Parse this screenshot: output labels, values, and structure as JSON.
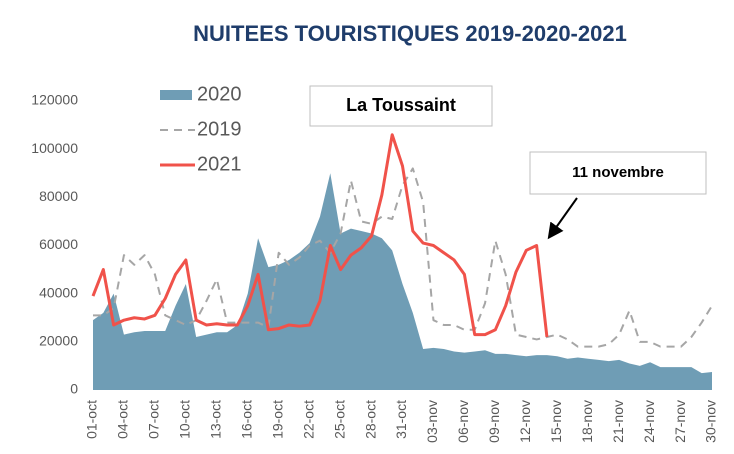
{
  "chart_data": {
    "type": "line",
    "title": "NUITEES TOURISTIQUES 2019-2020-2021",
    "annotations": [
      "La Toussaint",
      "11 novembre"
    ],
    "categories": [
      "01-oct",
      null,
      null,
      "04-oct",
      null,
      null,
      "07-oct",
      null,
      null,
      "10-oct",
      null,
      null,
      "13-oct",
      null,
      null,
      "16-oct",
      null,
      null,
      "19-oct",
      null,
      null,
      "22-oct",
      null,
      null,
      "25-oct",
      null,
      null,
      "28-oct",
      null,
      null,
      "31-oct",
      null,
      null,
      "03-nov",
      null,
      null,
      "06-nov",
      null,
      null,
      "09-nov",
      null,
      null,
      "12-nov",
      null,
      null,
      "15-nov",
      null,
      null,
      "18-nov",
      null,
      null,
      "21-nov",
      null,
      null,
      "24-nov",
      null,
      null,
      "27-nov",
      null,
      null,
      "30-nov"
    ],
    "series": [
      {
        "name": "2020",
        "color": "#6f9db5",
        "style": "area",
        "values": [
          29000,
          32000,
          40000,
          23000,
          24000,
          24500,
          24500,
          24500,
          35000,
          44000,
          22000,
          23000,
          24000,
          24000,
          27000,
          40000,
          63000,
          51000,
          52000,
          54000,
          57000,
          61000,
          72000,
          90000,
          65000,
          67000,
          66000,
          65000,
          63000,
          58000,
          44000,
          32000,
          17000,
          17500,
          17000,
          16000,
          15500,
          16000,
          16500,
          15000,
          15000,
          14500,
          14000,
          14500,
          14500,
          14000,
          13000,
          13500,
          13000,
          12500,
          12000,
          12500,
          11000,
          10000,
          11500,
          9500,
          9500,
          9500,
          9500,
          7000,
          7500
        ]
      },
      {
        "name": "2019",
        "color": "#a6a6a6",
        "style": "dashed",
        "values": [
          31000,
          31000,
          34000,
          56000,
          52000,
          56000,
          48000,
          31000,
          29000,
          27000,
          29000,
          37000,
          46000,
          28000,
          28000,
          28000,
          28000,
          26000,
          57000,
          52000,
          55000,
          60000,
          62000,
          57000,
          65000,
          87000,
          70000,
          69000,
          72000,
          71000,
          85000,
          92000,
          78000,
          29000,
          27000,
          27000,
          25000,
          25000,
          36000,
          62000,
          48000,
          23000,
          22000,
          21000,
          22000,
          23000,
          21000,
          18000,
          18000,
          18000,
          19000,
          23000,
          33000,
          20000,
          20000,
          18000,
          18000,
          18000,
          22000,
          28000,
          35000
        ]
      },
      {
        "name": "2021",
        "color": "#f0524a",
        "style": "solid",
        "values": [
          39000,
          50000,
          27000,
          29000,
          30000,
          29500,
          31000,
          38000,
          48000,
          54000,
          29000,
          27000,
          27500,
          27000,
          27000,
          35000,
          48000,
          25000,
          25500,
          27000,
          26500,
          27000,
          37000,
          60000,
          50000,
          56000,
          59000,
          64000,
          81000,
          106000,
          93000,
          66000,
          61000,
          60000,
          57000,
          54000,
          48000,
          23000,
          23000,
          25000,
          35000,
          49000,
          58000,
          60000,
          22000,
          null,
          null,
          null,
          null,
          null,
          null,
          null,
          null,
          null,
          null,
          null,
          null,
          null,
          null,
          null,
          null
        ]
      }
    ],
    "ylim": [
      0,
      120000
    ],
    "yticks": [
      0,
      20000,
      40000,
      60000,
      80000,
      100000,
      120000
    ],
    "grid": false
  }
}
